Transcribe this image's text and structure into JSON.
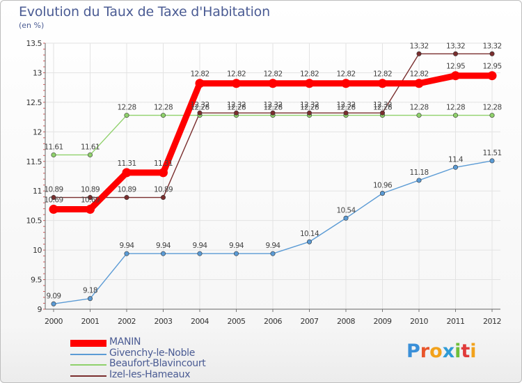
{
  "title": "Evolution du Taux de Taxe d'Habitation",
  "subtitle": "(en %)",
  "logo_text": "Proxiti",
  "colors": {
    "title": "#4a5b93",
    "manin": "#ff0000",
    "givenchy": "#5b9bd5",
    "beaufort": "#8fd16b",
    "izel": "#7a2e2e"
  },
  "chart_data": {
    "type": "line",
    "title": "Evolution du Taux de Taxe d'Habitation",
    "ylabel": "(en %)",
    "xlabel": "",
    "x": [
      "2000",
      "2001",
      "2002",
      "2003",
      "2004",
      "2005",
      "2006",
      "2007",
      "2008",
      "2009",
      "2010",
      "2011",
      "2012"
    ],
    "ylim": [
      9,
      13.5
    ],
    "yticks": [
      "9",
      "9.5",
      "10",
      "10.5",
      "11",
      "11.5",
      "12",
      "12.5",
      "13",
      "13.5"
    ],
    "grid": true,
    "legend_position": "bottom-left",
    "series": [
      {
        "name": "MANIN",
        "color": "#ff0000",
        "values": [
          10.69,
          10.69,
          11.31,
          11.31,
          12.82,
          12.82,
          12.82,
          12.82,
          12.82,
          12.82,
          12.82,
          12.95,
          12.95
        ],
        "labels": [
          "10.69",
          "10.69",
          "11.31",
          "11.31",
          "12.82",
          "12.82",
          "12.82",
          "12.82",
          "12.82",
          "12.82",
          "12.82",
          "12.95",
          "12.95"
        ]
      },
      {
        "name": "Givenchy-le-Noble",
        "color": "#5b9bd5",
        "values": [
          9.09,
          9.18,
          9.94,
          9.94,
          9.94,
          9.94,
          9.94,
          10.14,
          10.54,
          10.96,
          11.18,
          11.4,
          11.51
        ],
        "labels": [
          "9.09",
          "9.18",
          "9.94",
          "9.94",
          "9.94",
          "9.94",
          "9.94",
          "10.14",
          "10.54",
          "10.96",
          "11.18",
          "11.4",
          "11.51"
        ]
      },
      {
        "name": "Beaufort-Blavincourt",
        "color": "#8fd16b",
        "values": [
          11.61,
          11.61,
          12.28,
          12.28,
          12.28,
          12.28,
          12.28,
          12.28,
          12.28,
          12.28,
          12.28,
          12.28,
          12.28
        ],
        "labels": [
          "11.61",
          "11.61",
          "12.28",
          "12.28",
          "12.28",
          "12.28",
          "12.28",
          "12.28",
          "12.28",
          "12.28",
          "12.28",
          "12.28",
          "12.28"
        ]
      },
      {
        "name": "Izel-les-Hameaux",
        "color": "#7a2e2e",
        "values": [
          10.89,
          10.89,
          10.89,
          10.89,
          12.32,
          12.32,
          12.32,
          12.32,
          12.32,
          12.32,
          13.32,
          13.32,
          13.32
        ],
        "labels": [
          "10.89",
          "10.89",
          "10.89",
          "10.89",
          "12.32",
          "12.32",
          "12.32",
          "12.32",
          "12.32",
          "12.32",
          "13.32",
          "13.32",
          "13.32"
        ]
      }
    ]
  }
}
